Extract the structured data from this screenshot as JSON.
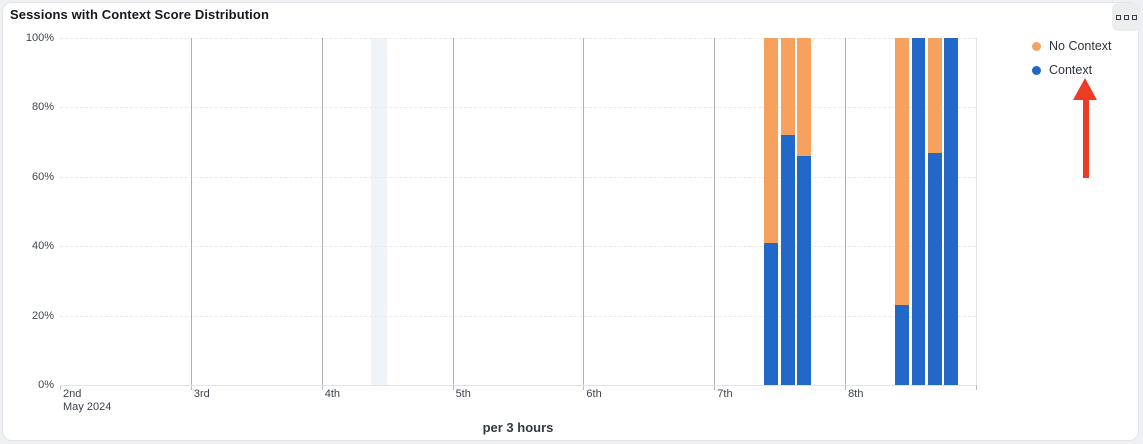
{
  "header": {
    "title": "Sessions with Context Score Distribution"
  },
  "chart_data": {
    "type": "bar",
    "stacked": true,
    "unit": "percent",
    "title": "Sessions with Context Score Distribution",
    "xlabel": "per 3 hours",
    "ylabel": "",
    "ylim": [
      0,
      100
    ],
    "grid": true,
    "y_tick_labels": [
      "100%",
      "80%",
      "60%",
      "40%",
      "20%",
      "0%"
    ],
    "x_tick_labels": [
      "2nd",
      "3rd",
      "4th",
      "5th",
      "6th",
      "7th",
      "8th"
    ],
    "x_axis_subtitle": "May 2024",
    "slots_per_day": 8,
    "legend_position": "top-right",
    "legend": [
      {
        "label": "No Context",
        "color": "#f2a363"
      },
      {
        "label": "Context",
        "color": "#2166c2"
      }
    ],
    "series_colors": {
      "context": "#2268c8",
      "no_context": "#f6a25e"
    },
    "bars": [
      {
        "day": "7th",
        "day_index": 5,
        "slot": 3,
        "context_pct": 41,
        "no_context_pct": 59
      },
      {
        "day": "7th",
        "day_index": 5,
        "slot": 4,
        "context_pct": 72,
        "no_context_pct": 28
      },
      {
        "day": "7th",
        "day_index": 5,
        "slot": 5,
        "context_pct": 66,
        "no_context_pct": 34
      },
      {
        "day": "8th",
        "day_index": 6,
        "slot": 3,
        "context_pct": 23,
        "no_context_pct": 77
      },
      {
        "day": "8th",
        "day_index": 6,
        "slot": 4,
        "context_pct": 100,
        "no_context_pct": 0
      },
      {
        "day": "8th",
        "day_index": 6,
        "slot": 5,
        "context_pct": 67,
        "no_context_pct": 33
      },
      {
        "day": "8th",
        "day_index": 6,
        "slot": 6,
        "context_pct": 100,
        "no_context_pct": 0
      }
    ],
    "highlighted_slot": {
      "day": "4th",
      "day_index": 2,
      "slot": 3
    }
  },
  "annotation_arrow": {
    "shape": "arrow-up",
    "color": "#ee3b26",
    "points_to": "Context legend item"
  }
}
